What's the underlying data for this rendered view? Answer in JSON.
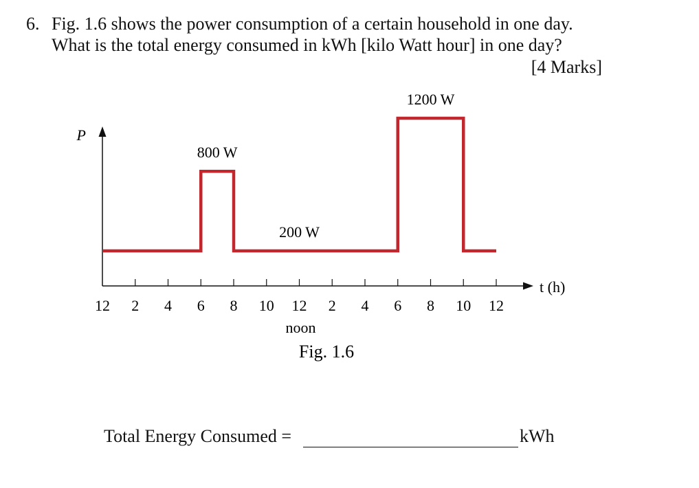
{
  "question": {
    "number": "6.",
    "line1": "Fig. 1.6 shows the power consumption of a certain household in one day.",
    "line2": "What is the total energy consumed in kWh [kilo Watt hour] in one day?",
    "marks": "[4 Marks]"
  },
  "chart_data": {
    "type": "line",
    "step": true,
    "ylabel": "P",
    "xlabel": "t (h)",
    "x_tick_labels": [
      "12",
      "2",
      "4",
      "6",
      "8",
      "10",
      "12",
      "2",
      "4",
      "6",
      "8",
      "10",
      "12"
    ],
    "x_tick_sublabel": {
      "tick_index": 6,
      "text": "noon"
    },
    "series": [
      {
        "color": "#c1272d",
        "points": [
          {
            "x": 0,
            "y": 200
          },
          {
            "x": 6,
            "y": 200
          },
          {
            "x": 6,
            "y": 800
          },
          {
            "x": 8,
            "y": 800
          },
          {
            "x": 8,
            "y": 200
          },
          {
            "x": 18,
            "y": 200
          },
          {
            "x": 18,
            "y": 1200
          },
          {
            "x": 22,
            "y": 1200
          },
          {
            "x": 22,
            "y": 200
          },
          {
            "x": 24,
            "y": 200
          }
        ]
      }
    ],
    "annotations": [
      "800 W",
      "200 W",
      "1200 W"
    ],
    "caption": "Fig. 1.6"
  },
  "answer": {
    "label": "Total Energy Consumed =",
    "unit": "kWh"
  }
}
